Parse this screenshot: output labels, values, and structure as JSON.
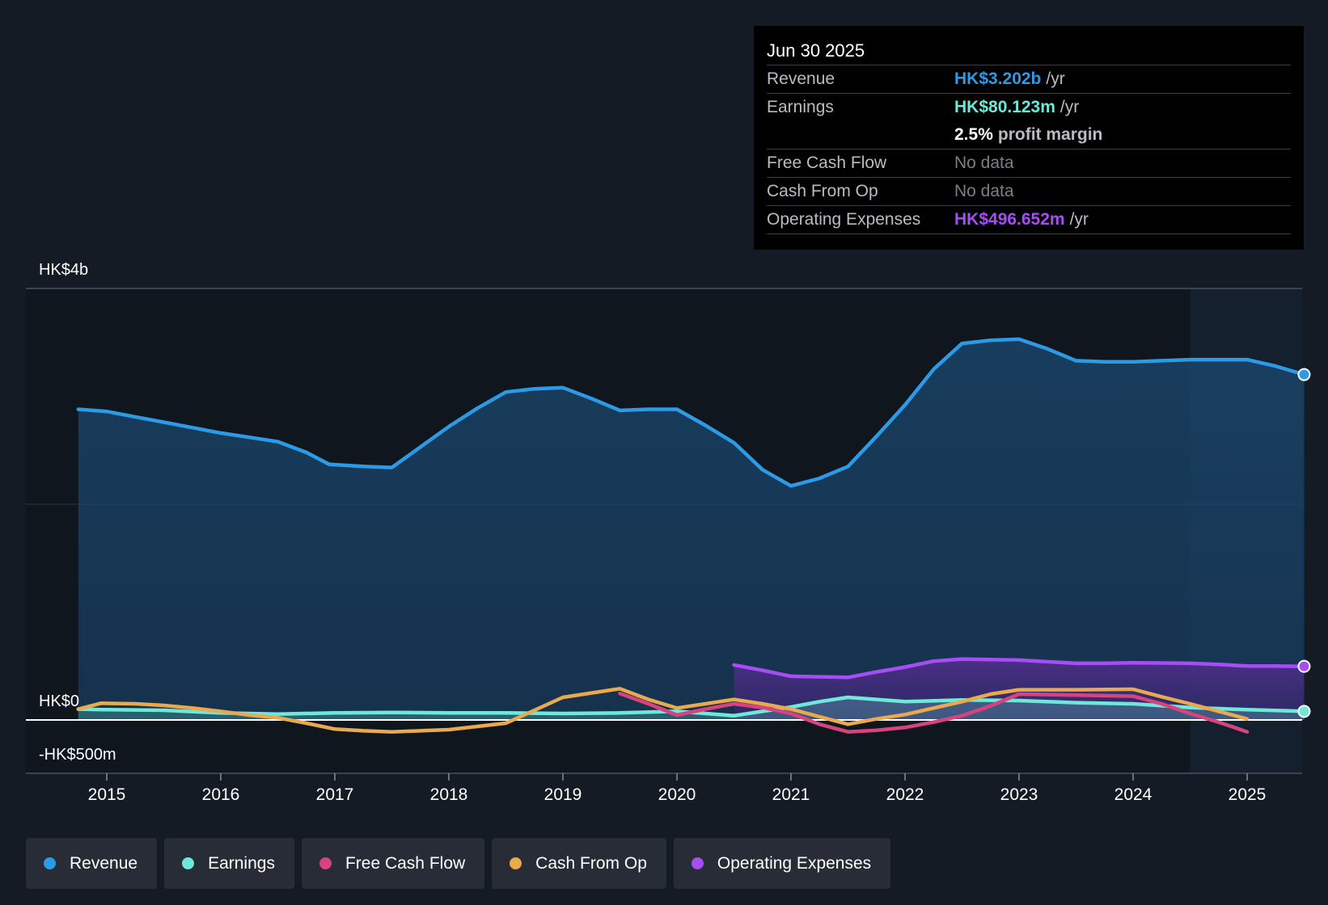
{
  "tooltip": {
    "date": "Jun 30 2025",
    "rows": {
      "revenue": {
        "label": "Revenue",
        "value": "HK$3.202b",
        "unit": "/yr",
        "color": "#2d9ae6"
      },
      "earnings": {
        "label": "Earnings",
        "value": "HK$80.123m",
        "unit": "/yr",
        "color": "#6ee8d9"
      },
      "margin": {
        "value": "2.5%",
        "unit": "profit margin"
      },
      "fcf": {
        "label": "Free Cash Flow",
        "value": "No data"
      },
      "cfo": {
        "label": "Cash From Op",
        "value": "No data"
      },
      "opex": {
        "label": "Operating Expenses",
        "value": "HK$496.652m",
        "unit": "/yr",
        "color": "#a64ef5"
      }
    }
  },
  "legend": [
    {
      "label": "Revenue",
      "color": "#2d9ae6"
    },
    {
      "label": "Earnings",
      "color": "#6ee8d9"
    },
    {
      "label": "Free Cash Flow",
      "color": "#d6437e"
    },
    {
      "label": "Cash From Op",
      "color": "#e8a94f"
    },
    {
      "label": "Operating Expenses",
      "color": "#a64ef5"
    }
  ],
  "chart_data": {
    "type": "line",
    "ylim": [
      -500,
      4000
    ],
    "y_axis_labels": [
      "HK$4b",
      "HK$0",
      "-HK$500m"
    ],
    "x_tick_labels": [
      "2015",
      "2016",
      "2017",
      "2018",
      "2019",
      "2020",
      "2021",
      "2022",
      "2023",
      "2024",
      "2025"
    ],
    "forecast_shading_from": 2024.5,
    "series": [
      {
        "key": "revenue",
        "name": "Revenue",
        "color": "#2d9ae6",
        "fill": true,
        "points": [
          [
            2014.75,
            2880
          ],
          [
            2015.0,
            2860
          ],
          [
            2015.25,
            2810
          ],
          [
            2015.5,
            2760
          ],
          [
            2015.75,
            2710
          ],
          [
            2016.0,
            2660
          ],
          [
            2016.25,
            2620
          ],
          [
            2016.5,
            2580
          ],
          [
            2016.75,
            2480
          ],
          [
            2016.95,
            2370
          ],
          [
            2017.25,
            2350
          ],
          [
            2017.5,
            2340
          ],
          [
            2017.75,
            2530
          ],
          [
            2018.0,
            2720
          ],
          [
            2018.25,
            2890
          ],
          [
            2018.5,
            3040
          ],
          [
            2018.75,
            3070
          ],
          [
            2019.0,
            3080
          ],
          [
            2019.25,
            2980
          ],
          [
            2019.5,
            2870
          ],
          [
            2019.75,
            2880
          ],
          [
            2020.0,
            2880
          ],
          [
            2020.25,
            2730
          ],
          [
            2020.5,
            2570
          ],
          [
            2020.75,
            2320
          ],
          [
            2021.0,
            2170
          ],
          [
            2021.25,
            2240
          ],
          [
            2021.5,
            2350
          ],
          [
            2021.75,
            2630
          ],
          [
            2022.0,
            2920
          ],
          [
            2022.25,
            3250
          ],
          [
            2022.5,
            3490
          ],
          [
            2022.75,
            3520
          ],
          [
            2023.0,
            3530
          ],
          [
            2023.25,
            3440
          ],
          [
            2023.5,
            3330
          ],
          [
            2023.75,
            3320
          ],
          [
            2024.0,
            3320
          ],
          [
            2024.25,
            3330
          ],
          [
            2024.5,
            3340
          ],
          [
            2024.75,
            3340
          ],
          [
            2025.0,
            3340
          ],
          [
            2025.25,
            3280
          ],
          [
            2025.5,
            3202
          ]
        ]
      },
      {
        "key": "opex",
        "name": "Operating Expenses",
        "color": "#a64ef5",
        "fill": true,
        "points": [
          [
            2020.5,
            510
          ],
          [
            2020.75,
            460
          ],
          [
            2021.0,
            405
          ],
          [
            2021.25,
            400
          ],
          [
            2021.5,
            395
          ],
          [
            2021.75,
            445
          ],
          [
            2022.0,
            490
          ],
          [
            2022.25,
            545
          ],
          [
            2022.5,
            565
          ],
          [
            2022.75,
            560
          ],
          [
            2023.0,
            555
          ],
          [
            2023.25,
            540
          ],
          [
            2023.5,
            525
          ],
          [
            2023.75,
            525
          ],
          [
            2024.0,
            530
          ],
          [
            2024.25,
            528
          ],
          [
            2024.5,
            525
          ],
          [
            2024.75,
            515
          ],
          [
            2025.0,
            500
          ],
          [
            2025.25,
            500
          ],
          [
            2025.5,
            497
          ]
        ]
      },
      {
        "key": "earnings",
        "name": "Earnings",
        "color": "#6ee8d9",
        "fill": true,
        "points": [
          [
            2014.75,
            100
          ],
          [
            2015.0,
            95
          ],
          [
            2015.5,
            90
          ],
          [
            2016.0,
            65
          ],
          [
            2016.5,
            55
          ],
          [
            2017.0,
            65
          ],
          [
            2017.5,
            70
          ],
          [
            2018.0,
            65
          ],
          [
            2018.5,
            65
          ],
          [
            2019.0,
            60
          ],
          [
            2019.5,
            65
          ],
          [
            2020.0,
            80
          ],
          [
            2020.5,
            40
          ],
          [
            2021.0,
            120
          ],
          [
            2021.25,
            170
          ],
          [
            2021.5,
            210
          ],
          [
            2022.0,
            170
          ],
          [
            2022.5,
            185
          ],
          [
            2023.0,
            180
          ],
          [
            2023.5,
            160
          ],
          [
            2024.0,
            150
          ],
          [
            2024.5,
            115
          ],
          [
            2025.0,
            95
          ],
          [
            2025.5,
            80
          ]
        ]
      },
      {
        "key": "fcf",
        "name": "Free Cash Flow",
        "color": "#d6437e",
        "fill": false,
        "points": [
          [
            2019.5,
            245
          ],
          [
            2019.75,
            150
          ],
          [
            2020.0,
            45
          ],
          [
            2020.25,
            100
          ],
          [
            2020.5,
            150
          ],
          [
            2020.75,
            115
          ],
          [
            2021.0,
            60
          ],
          [
            2021.25,
            -40
          ],
          [
            2021.5,
            -110
          ],
          [
            2021.75,
            -95
          ],
          [
            2022.0,
            -70
          ],
          [
            2022.25,
            -20
          ],
          [
            2022.5,
            40
          ],
          [
            2022.75,
            130
          ],
          [
            2023.0,
            240
          ],
          [
            2023.5,
            230
          ],
          [
            2024.0,
            220
          ],
          [
            2024.25,
            150
          ],
          [
            2024.5,
            60
          ],
          [
            2024.75,
            -20
          ],
          [
            2025.0,
            -110
          ]
        ]
      },
      {
        "key": "cfo",
        "name": "Cash From Op",
        "color": "#e8a94f",
        "fill": false,
        "points": [
          [
            2014.75,
            100
          ],
          [
            2014.95,
            155
          ],
          [
            2015.25,
            150
          ],
          [
            2015.5,
            135
          ],
          [
            2015.75,
            110
          ],
          [
            2016.0,
            80
          ],
          [
            2016.25,
            45
          ],
          [
            2016.5,
            20
          ],
          [
            2016.75,
            -30
          ],
          [
            2017.0,
            -85
          ],
          [
            2017.25,
            -100
          ],
          [
            2017.5,
            -110
          ],
          [
            2017.75,
            -100
          ],
          [
            2018.0,
            -90
          ],
          [
            2018.25,
            -60
          ],
          [
            2018.5,
            -30
          ],
          [
            2018.75,
            90
          ],
          [
            2019.0,
            210
          ],
          [
            2019.25,
            250
          ],
          [
            2019.5,
            290
          ],
          [
            2019.75,
            190
          ],
          [
            2020.0,
            110
          ],
          [
            2020.25,
            150
          ],
          [
            2020.5,
            190
          ],
          [
            2020.75,
            150
          ],
          [
            2021.0,
            100
          ],
          [
            2021.25,
            30
          ],
          [
            2021.5,
            -40
          ],
          [
            2021.75,
            10
          ],
          [
            2022.0,
            50
          ],
          [
            2022.25,
            110
          ],
          [
            2022.5,
            170
          ],
          [
            2022.75,
            240
          ],
          [
            2023.0,
            280
          ],
          [
            2023.5,
            280
          ],
          [
            2024.0,
            285
          ],
          [
            2024.25,
            215
          ],
          [
            2024.5,
            150
          ],
          [
            2024.75,
            80
          ],
          [
            2025.0,
            10
          ]
        ]
      }
    ]
  }
}
